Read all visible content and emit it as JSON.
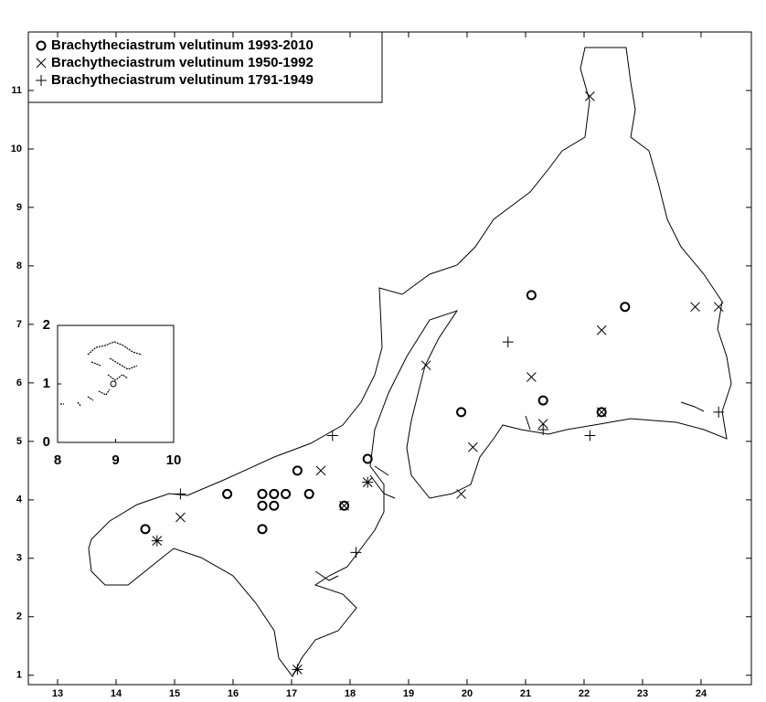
{
  "chart_data": [
    {
      "type": "scatter",
      "xlim": [
        12.5,
        24.86
      ],
      "ylim": [
        0.84,
        12.0
      ],
      "xticks": [
        13,
        14,
        15,
        16,
        17,
        18,
        19,
        20,
        21,
        22,
        23,
        24
      ],
      "yticks": [
        1,
        2,
        3,
        4,
        5,
        6,
        7,
        8,
        9,
        10,
        11
      ],
      "series": [
        {
          "name": "Brachytheciastrum velutinum 1993-2010",
          "marker": "o",
          "color": "#000000",
          "x": [
            14.5,
            15.9,
            16.5,
            16.5,
            16.5,
            16.7,
            16.7,
            16.9,
            17.1,
            17.3,
            17.9,
            18.3,
            19.9,
            21.1,
            21.3,
            22.3,
            22.7
          ],
          "values": [
            3.5,
            4.1,
            4.1,
            3.9,
            3.5,
            4.1,
            3.9,
            4.1,
            4.5,
            4.1,
            3.9,
            4.7,
            5.5,
            7.5,
            5.7,
            5.5,
            7.3
          ]
        },
        {
          "name": "Brachytheciastrum velutinum 1950-1992",
          "marker": "x",
          "color": "#000000",
          "x": [
            14.7,
            15.1,
            17.1,
            17.5,
            17.9,
            18.3,
            19.3,
            19.9,
            20.1,
            21.1,
            21.3,
            22.1,
            22.3,
            22.3,
            23.9,
            24.3
          ],
          "values": [
            3.3,
            3.7,
            1.1,
            4.5,
            3.9,
            4.3,
            6.3,
            4.1,
            4.9,
            6.1,
            5.3,
            10.9,
            6.9,
            5.5,
            7.3,
            7.3
          ]
        },
        {
          "name": "Brachytheciastrum velutinum 1791-1949",
          "marker": "+",
          "color": "#000000",
          "x": [
            14.7,
            15.1,
            17.1,
            17.7,
            18.1,
            18.3,
            20.7,
            21.3,
            22.1,
            24.3
          ],
          "values": [
            3.3,
            4.1,
            1.1,
            5.1,
            3.1,
            4.3,
            6.7,
            5.2,
            5.1,
            5.5
          ]
        }
      ]
    },
    {
      "type": "inset",
      "xlim": [
        8,
        10
      ],
      "ylim": [
        0,
        2
      ],
      "xticks": [
        8,
        9,
        10
      ],
      "yticks": [
        0,
        1,
        2
      ]
    }
  ]
}
